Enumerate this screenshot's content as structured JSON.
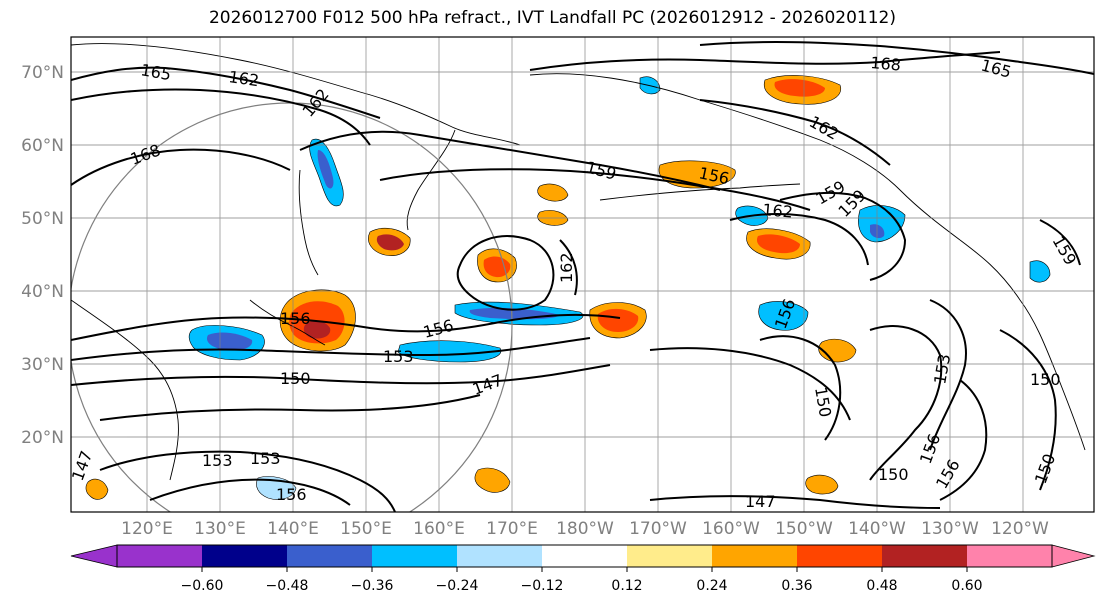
{
  "title": "2026012700 F012 500 hPa refract., IVT Landfall PC (2026012912 - 2026020112)",
  "lat_labels": [
    "70°N",
    "60°N",
    "50°N",
    "40°N",
    "30°N",
    "20°N"
  ],
  "lon_labels": [
    "120°E",
    "130°E",
    "140°E",
    "150°E",
    "160°E",
    "170°E",
    "180°W",
    "170°W",
    "160°W",
    "150°W",
    "140°W",
    "130°W",
    "120°W"
  ],
  "colorbar": {
    "colors": [
      "#9932cc",
      "#00008b",
      "#3a5fcd",
      "#00bfff",
      "#b0e2ff",
      "#ffffff",
      "#ffec8b",
      "#ffa500",
      "#ff4500",
      "#b22222",
      "#ff82ab"
    ],
    "ticks": [
      "−0.60",
      "−0.48",
      "−0.36",
      "−0.24",
      "−0.12",
      "0.12",
      "0.24",
      "0.36",
      "0.48",
      "0.60"
    ]
  },
  "contour_labels": [
    {
      "text": "165"
    },
    {
      "text": "162"
    },
    {
      "text": "162"
    },
    {
      "text": "168"
    },
    {
      "text": "159"
    },
    {
      "text": "156"
    },
    {
      "text": "162"
    },
    {
      "text": "162"
    },
    {
      "text": "168"
    },
    {
      "text": "165"
    },
    {
      "text": "159"
    },
    {
      "text": "159"
    },
    {
      "text": "162"
    },
    {
      "text": "159"
    },
    {
      "text": "156"
    },
    {
      "text": "156"
    },
    {
      "text": "153"
    },
    {
      "text": "150"
    },
    {
      "text": "147"
    },
    {
      "text": "150"
    },
    {
      "text": "153"
    },
    {
      "text": "156"
    },
    {
      "text": "150"
    },
    {
      "text": "150"
    },
    {
      "text": "156"
    },
    {
      "text": "156"
    },
    {
      "text": "150"
    },
    {
      "text": "147"
    },
    {
      "text": "153"
    },
    {
      "text": "147"
    },
    {
      "text": "156"
    },
    {
      "text": "153"
    }
  ]
}
